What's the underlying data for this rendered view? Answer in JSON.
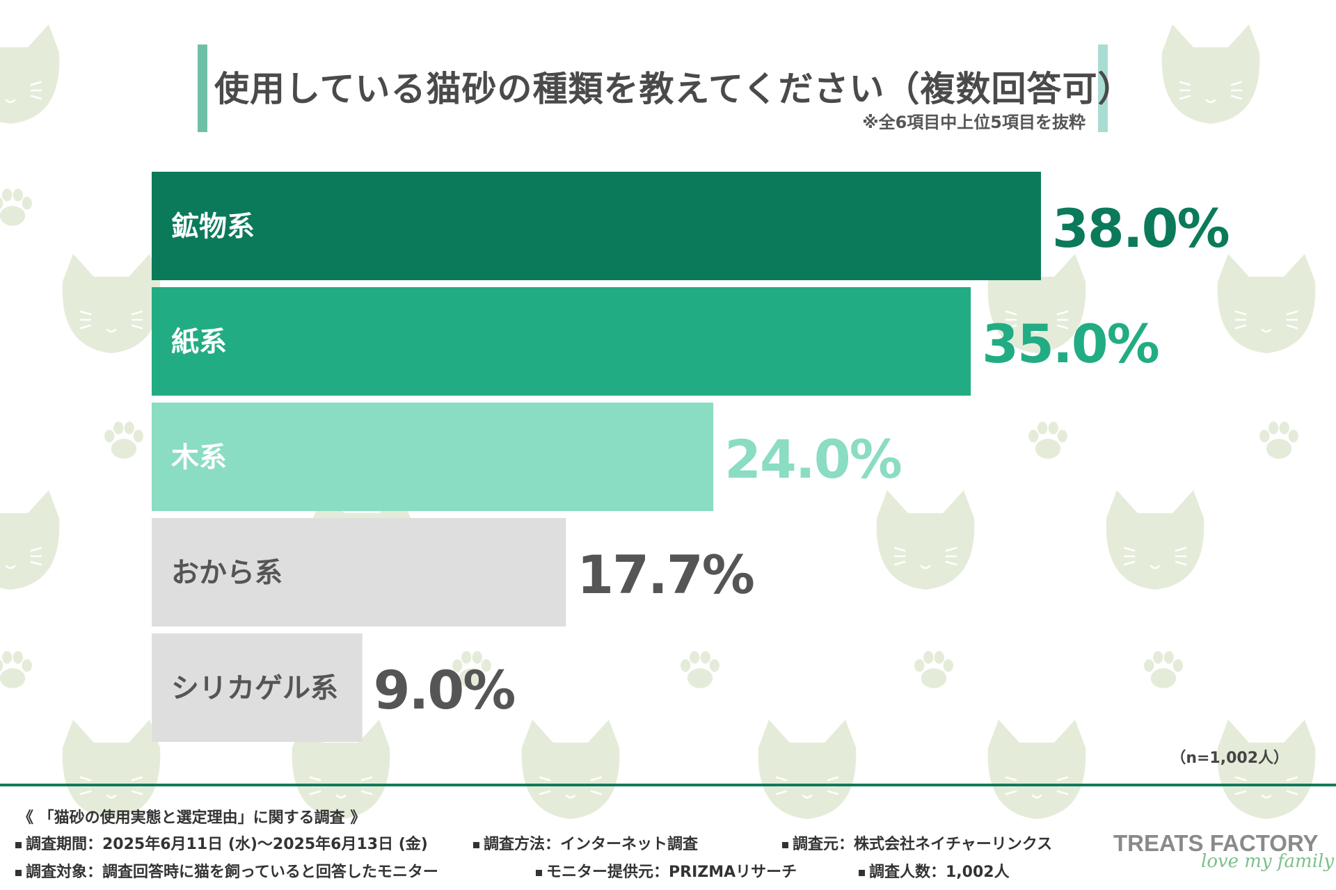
{
  "title": "使用している猫砂の種類を教えてください（複数回答可）",
  "subtitle": "※全6項目中上位5項目を抜粋",
  "sample_size": "（n=1,002人）",
  "colors": {
    "mineral": "#0b7a5a",
    "paper": "#22ac83",
    "wood": "#8adcc3",
    "other": "#dedede",
    "other_text": "#555555",
    "label_light": "#ffffff"
  },
  "chart_data": {
    "type": "bar",
    "orientation": "horizontal",
    "categories": [
      "鉱物系",
      "紙系",
      "木系",
      "おから系",
      "シリカゲル系"
    ],
    "values": [
      38.0,
      35.0,
      24.0,
      17.7,
      9.0
    ],
    "value_labels": [
      "38.0%",
      "35.0%",
      "24.0%",
      "17.7%",
      "9.0%"
    ],
    "xlim": [
      0,
      38.0
    ],
    "grid": false,
    "legend": "none"
  },
  "footer": {
    "heading": "《 「猫砂の使用実態と選定理由」に関する調査 》",
    "period": "調査期間：2025年6月11日 (水)〜2025年6月13日 (金)",
    "method": "調査方法：インターネット調査",
    "source": "調査元：株式会社ネイチャーリンクス",
    "target": "調査対象：調査回答時に猫を飼っていると回答したモニター",
    "provider": "モニター提供元：PRIZMAリサーチ",
    "respondents": "調査人数：1,002人"
  },
  "brand": {
    "name": "TREATS FACTORY",
    "tagline": "love my family"
  }
}
